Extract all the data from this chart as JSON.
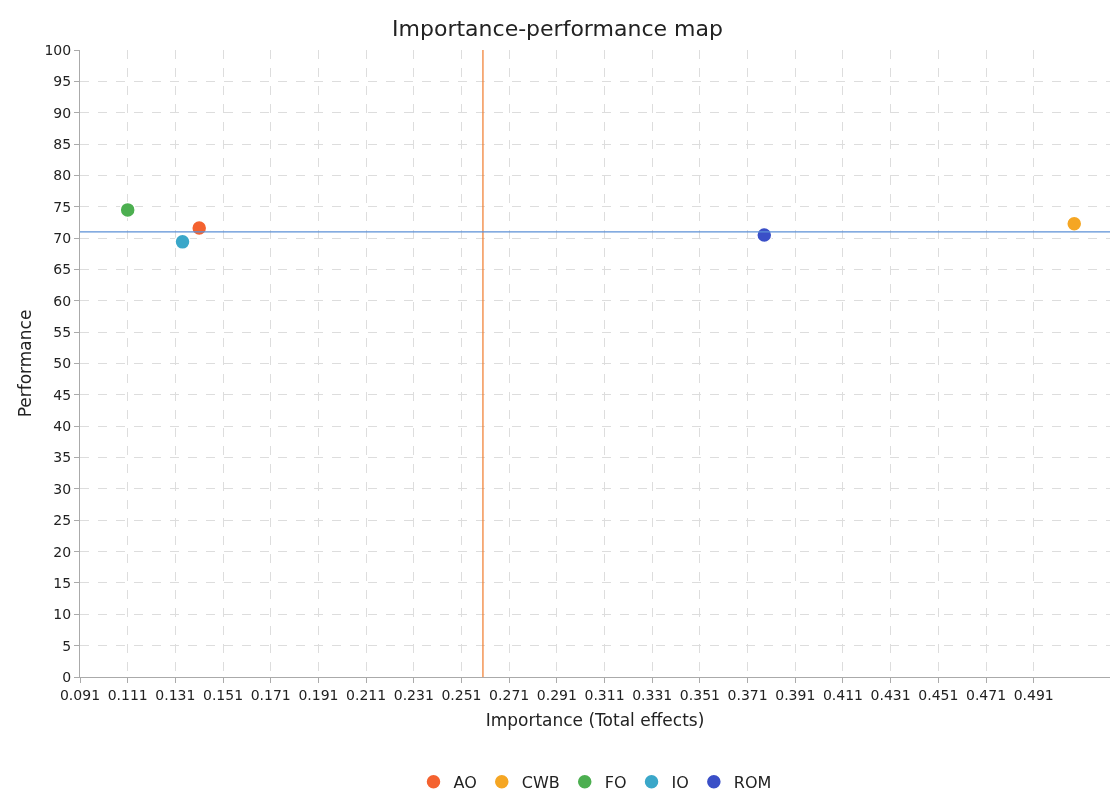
{
  "chart_data": {
    "type": "scatter",
    "title": "Importance-performance map",
    "xlabel": "Importance (Total effects)",
    "ylabel": "Performance",
    "series": [
      {
        "name": "AO",
        "color": "#f4622f",
        "x": [
          0.141
        ],
        "values": [
          71.6
        ]
      },
      {
        "name": "CWB",
        "color": "#f5a623",
        "x": [
          0.508
        ],
        "values": [
          72.3
        ]
      },
      {
        "name": "FO",
        "color": "#4caf50",
        "x": [
          0.111
        ],
        "values": [
          74.5
        ]
      },
      {
        "name": "IO",
        "color": "#3aa7c9",
        "x": [
          0.134
        ],
        "values": [
          69.4
        ]
      },
      {
        "name": "ROM",
        "color": "#3a4fc7",
        "x": [
          0.378
        ],
        "values": [
          70.5
        ]
      }
    ],
    "xlim": [
      0.091,
      0.523
    ],
    "xticks": [
      0.091,
      0.111,
      0.131,
      0.151,
      0.171,
      0.191,
      0.211,
      0.231,
      0.251,
      0.271,
      0.291,
      0.311,
      0.331,
      0.351,
      0.371,
      0.391,
      0.411,
      0.431,
      0.451,
      0.471,
      0.491
    ],
    "ylim": [
      0,
      100
    ],
    "yticks": [
      0,
      5,
      10,
      15,
      20,
      25,
      30,
      35,
      40,
      45,
      50,
      55,
      60,
      65,
      70,
      75,
      80,
      85,
      90,
      95,
      100
    ],
    "ref_lines": [
      {
        "axis": "x",
        "value": 0.26,
        "color": "#f07a2a"
      },
      {
        "axis": "y",
        "value": 71.0,
        "color": "#5b8fd6"
      }
    ],
    "grid": true,
    "legend": "bottom",
    "marker": "circle"
  }
}
